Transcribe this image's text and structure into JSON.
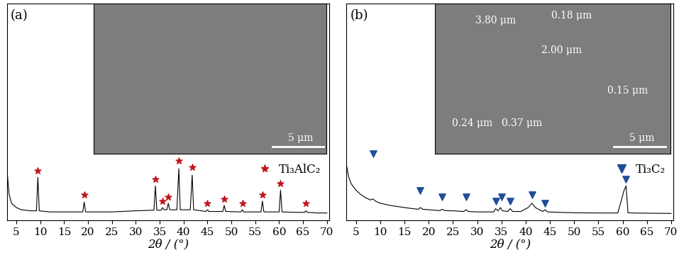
{
  "chart_data": [
    {
      "type": "line",
      "title": "(a)",
      "xlabel": "2θ / (°)",
      "xlim": [
        3,
        70.5
      ],
      "xticks": [
        5,
        10,
        15,
        20,
        25,
        30,
        35,
        40,
        45,
        50,
        55,
        60,
        65,
        70
      ],
      "ylim": [
        0,
        100
      ],
      "yticks": [],
      "tick_labels": "x",
      "legend": "upper right",
      "annotations": [
        "5 μm"
      ],
      "series": [
        {
          "type": "line",
          "color": "#000000",
          "x": [
            3,
            3.5,
            4,
            5,
            6,
            8,
            9.2,
            9.5,
            9.8,
            12,
            15,
            18.9,
            19.2,
            19.5,
            25,
            30,
            33.8,
            34.1,
            34.4,
            35.3,
            35.6,
            35.9,
            36.5,
            36.8,
            37.1,
            38.6,
            39.0,
            39.3,
            41.4,
            41.8,
            42.1,
            44.7,
            45.0,
            45.3,
            48.2,
            48.5,
            48.8,
            52.0,
            52.3,
            52.6,
            56.2,
            56.5,
            56.8,
            60.0,
            60.3,
            60.6,
            63,
            65.3,
            65.6,
            65.9,
            68,
            70
          ],
          "values": [
            24,
            12,
            8,
            6,
            5,
            4.5,
            4.5,
            20,
            4.5,
            4,
            4,
            4,
            8.5,
            4,
            4,
            4.5,
            4.8,
            16,
            4.8,
            4.8,
            6,
            5,
            5,
            8,
            5,
            5,
            24,
            5,
            5,
            21,
            5,
            4.2,
            5,
            4.2,
            4.2,
            7,
            4.2,
            4,
            5,
            4,
            4,
            9,
            4,
            4,
            14,
            4,
            3.8,
            3.8,
            4.5,
            3.8,
            3.5,
            3.5
          ]
        },
        {
          "type": "scatter",
          "name": "Ti₃AlC₂",
          "color": "#c0161c",
          "marker": "star",
          "x": [
            9.5,
            19.2,
            34.1,
            35.6,
            36.8,
            39.0,
            41.8,
            45.0,
            48.5,
            52.3,
            56.5,
            60.3,
            65.6
          ],
          "values": [
            23,
            12,
            19,
            9,
            11,
            27.5,
            24.5,
            8,
            10,
            8,
            12,
            17,
            8
          ]
        }
      ]
    },
    {
      "type": "line",
      "title": "(b)",
      "xlabel": "2θ / (°)",
      "xlim": [
        3,
        70.5
      ],
      "xticks": [
        5,
        10,
        15,
        20,
        25,
        30,
        35,
        40,
        45,
        50,
        55,
        60,
        65,
        70
      ],
      "ylim": [
        0,
        100
      ],
      "yticks": [],
      "tick_labels": "x",
      "legend": "upper right",
      "annotations": [
        "3.80 μm",
        "0.18 μm",
        "2.00 μm",
        "0.15 μm",
        "0.24 μm",
        "0.37 μm",
        "5 μm"
      ],
      "series": [
        {
          "type": "line",
          "color": "#000000",
          "x": [
            3,
            3.5,
            4,
            5,
            6,
            7,
            8,
            8.5,
            9,
            10,
            12,
            15,
            17.8,
            18.3,
            18.8,
            20,
            22.3,
            22.8,
            23.3,
            25,
            27.2,
            27.7,
            28.2,
            30,
            33.4,
            33.8,
            34.3,
            34.8,
            35.2,
            36.3,
            36.8,
            37.3,
            39,
            40.5,
            41.3,
            42,
            43.5,
            44,
            44.5,
            47,
            50,
            55,
            59,
            60.3,
            60.7,
            61.1,
            62,
            65,
            70
          ],
          "values": [
            26,
            20,
            17,
            14,
            12,
            10.5,
            9.5,
            10,
            9,
            8,
            7,
            6,
            5.2,
            6,
            5.2,
            5,
            4.6,
            5.2,
            4.6,
            4.5,
            4.2,
            5,
            4.2,
            4,
            4,
            5.5,
            4.5,
            6,
            4.5,
            4.2,
            5.5,
            4.2,
            4.2,
            6,
            8,
            6,
            4.2,
            5,
            4,
            3.8,
            3.6,
            3.5,
            3.5,
            14,
            16,
            3.6,
            3.5,
            3.4,
            3.3
          ]
        },
        {
          "type": "scatter",
          "name": "Ti₃C₂",
          "color": "#1f4e9a",
          "marker": "triangle",
          "x": [
            8.5,
            18.2,
            22.8,
            27.7,
            33.8,
            35.0,
            36.8,
            41.3,
            44.0,
            60.7
          ],
          "values": [
            31,
            14,
            11,
            11,
            9,
            11,
            9,
            12,
            8,
            19
          ]
        }
      ]
    }
  ]
}
